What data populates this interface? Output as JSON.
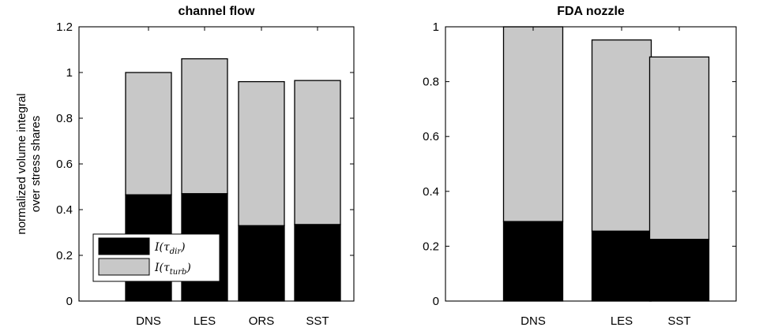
{
  "chart_data": [
    {
      "type": "bar",
      "stacked": true,
      "title": "channel flow",
      "ylabel_lines": [
        "normalized volume integral",
        "over stress shares"
      ],
      "categories": [
        "DNS",
        "LES",
        "ORS",
        "SST"
      ],
      "series": [
        {
          "name": "I(τ_dir)",
          "color": "#000000",
          "values": [
            0.465,
            0.47,
            0.33,
            0.335
          ]
        },
        {
          "name": "I(τ_turb)",
          "color": "#c8c8c8",
          "values": [
            0.535,
            0.59,
            0.63,
            0.63
          ]
        }
      ],
      "totals": [
        1.0,
        1.06,
        0.96,
        0.965
      ],
      "ylim": [
        0,
        1.2
      ],
      "yticks": [
        "0",
        "0.2",
        "0.4",
        "0.6",
        "0.8",
        "1",
        "1.2"
      ],
      "grid": false,
      "legend": {
        "placement": "bottom-left",
        "entries": [
          {
            "base": "I(τ",
            "sub": "dir",
            "close": ")",
            "color": "#000000"
          },
          {
            "base": "I(τ",
            "sub": "turb",
            "close": ")",
            "color": "#c8c8c8"
          }
        ]
      }
    },
    {
      "type": "bar",
      "stacked": true,
      "title": "FDA nozzle",
      "categories": [
        "DNS",
        "LES",
        "SST"
      ],
      "series": [
        {
          "name": "I(τ_dir)",
          "color": "#000000",
          "values": [
            0.29,
            0.255,
            0.225
          ]
        },
        {
          "name": "I(τ_turb)",
          "color": "#c8c8c8",
          "values": [
            0.71,
            0.697,
            0.665
          ]
        }
      ],
      "totals": [
        1.0,
        0.952,
        0.89
      ],
      "ylim": [
        0,
        1
      ],
      "yticks": [
        "0",
        "0.2",
        "0.4",
        "0.6",
        "0.8",
        "1"
      ],
      "grid": false
    }
  ]
}
